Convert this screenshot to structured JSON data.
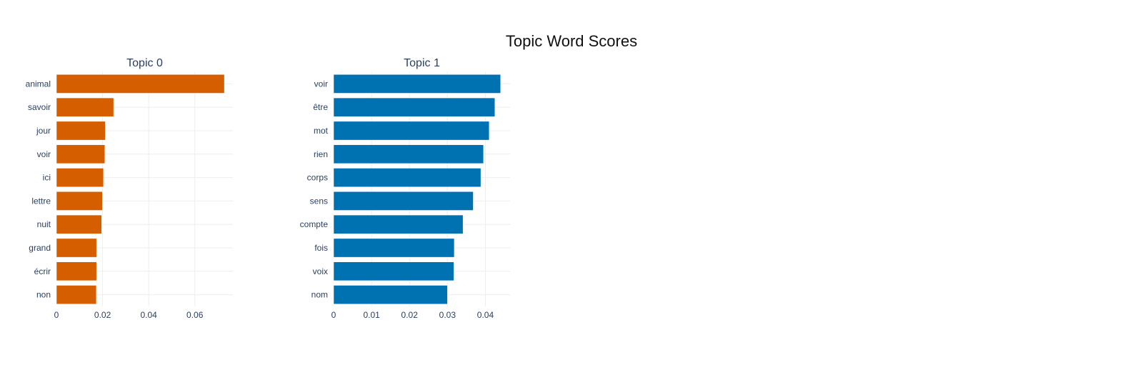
{
  "title": "Topic Word Scores",
  "chart_data": [
    {
      "type": "bar",
      "orientation": "horizontal",
      "title": "Topic 0",
      "color": "#d55e00",
      "categories": [
        "animal",
        "savoir",
        "jour",
        "voir",
        "ici",
        "lettre",
        "nuit",
        "grand",
        "écrir",
        "non"
      ],
      "values": [
        0.0728,
        0.0248,
        0.0212,
        0.021,
        0.0204,
        0.0199,
        0.0196,
        0.0174,
        0.0174,
        0.0173
      ],
      "xlim": [
        0,
        0.0765
      ],
      "xticks": [
        {
          "value": 0,
          "label": "0"
        },
        {
          "value": 0.02,
          "label": "0.02"
        },
        {
          "value": 0.04,
          "label": "0.04"
        },
        {
          "value": 0.06,
          "label": "0.06"
        }
      ],
      "grid": true
    },
    {
      "type": "bar",
      "orientation": "horizontal",
      "title": "Topic 1",
      "color": "#0072b2",
      "categories": [
        "voir",
        "être",
        "mot",
        "rien",
        "corps",
        "sens",
        "compte",
        "fois",
        "voix",
        "nom"
      ],
      "values": [
        0.044,
        0.0425,
        0.041,
        0.0395,
        0.0388,
        0.0368,
        0.0341,
        0.0318,
        0.0317,
        0.03
      ],
      "xlim": [
        0,
        0.0465
      ],
      "xticks": [
        {
          "value": 0,
          "label": "0"
        },
        {
          "value": 0.01,
          "label": "0.01"
        },
        {
          "value": 0.02,
          "label": "0.02"
        },
        {
          "value": 0.03,
          "label": "0.03"
        },
        {
          "value": 0.04,
          "label": "0.04"
        }
      ],
      "grid": true
    }
  ]
}
